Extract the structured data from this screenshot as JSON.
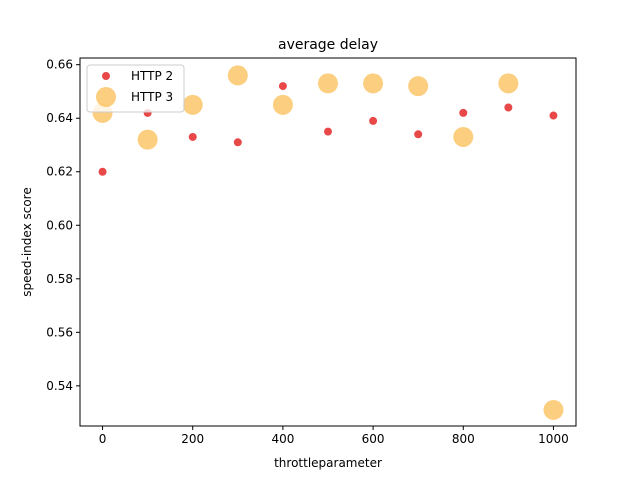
{
  "chart_data": {
    "type": "scatter",
    "title": "average delay",
    "xlabel": "throttleparameter",
    "ylabel": "speed-index score",
    "xlim": [
      -50,
      1050
    ],
    "ylim": [
      0.525,
      0.6625
    ],
    "xticks": [
      0,
      200,
      400,
      600,
      800,
      1000
    ],
    "yticks": [
      0.54,
      0.56,
      0.58,
      0.6,
      0.62,
      0.64,
      0.66
    ],
    "xtick_labels": [
      "0",
      "200",
      "400",
      "600",
      "800",
      "1000"
    ],
    "ytick_labels": [
      "0.54",
      "0.56",
      "0.58",
      "0.60",
      "0.62",
      "0.64",
      "0.66"
    ],
    "legend_position": "top-left",
    "series": [
      {
        "name": "HTTP 2",
        "color": "#e41a1c",
        "marker": "small-circle",
        "x": [
          0,
          100,
          200,
          300,
          400,
          500,
          600,
          700,
          800,
          900,
          1000
        ],
        "y": [
          0.62,
          0.642,
          0.633,
          0.631,
          0.652,
          0.635,
          0.639,
          0.634,
          0.642,
          0.644,
          0.641
        ]
      },
      {
        "name": "HTTP 3",
        "color": "#fbb949",
        "marker": "large-circle",
        "x": [
          0,
          100,
          200,
          300,
          400,
          500,
          600,
          700,
          800,
          900,
          1000
        ],
        "y": [
          0.642,
          0.632,
          0.645,
          0.656,
          0.645,
          0.653,
          0.653,
          0.652,
          0.633,
          0.653,
          0.531
        ]
      }
    ]
  }
}
